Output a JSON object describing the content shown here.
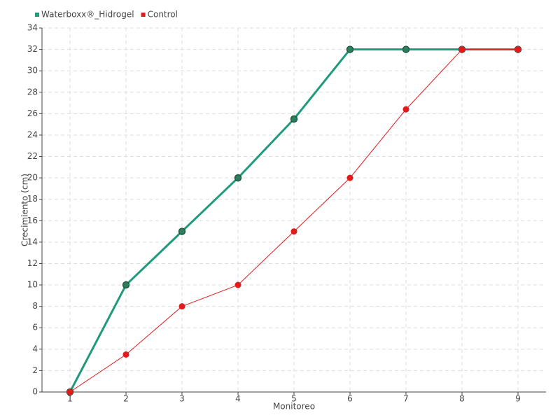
{
  "chart_data": {
    "type": "line",
    "x_label": "Monitoreo",
    "y_label": "Crecimiento (cm)",
    "categories": [
      "1",
      "2",
      "3",
      "4",
      "5",
      "6",
      "7",
      "8",
      "9"
    ],
    "series": [
      {
        "name": "Waterboxx®_Hidrogel",
        "color": "#1f9a7d",
        "marker_color": "#2e7d5b",
        "values": [
          0,
          10,
          15,
          20,
          25.5,
          32,
          32,
          32,
          32
        ]
      },
      {
        "name": "Control",
        "color": "#e31a1c",
        "marker_color": "#e31a1c",
        "values": [
          0,
          3.5,
          8,
          10,
          15,
          20,
          26.4,
          32,
          32
        ]
      }
    ],
    "ylim": [
      0,
      34
    ],
    "yticks": [
      0,
      2,
      4,
      6,
      8,
      10,
      12,
      14,
      16,
      18,
      20,
      22,
      24,
      26,
      28,
      30,
      32,
      34
    ],
    "grid": true,
    "legend": "top-left"
  }
}
